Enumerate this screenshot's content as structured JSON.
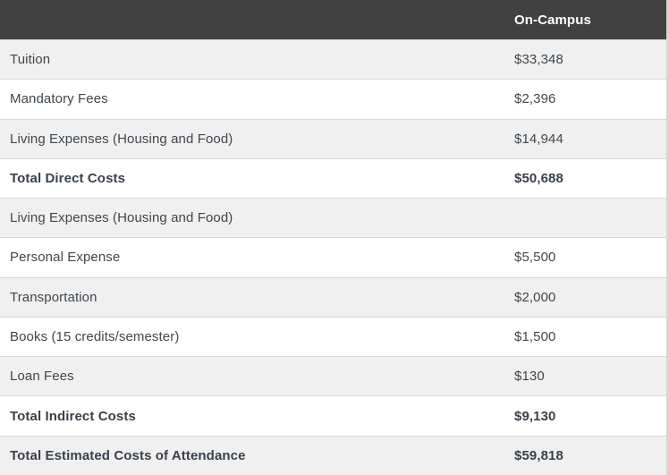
{
  "table": {
    "header": {
      "label_column": "",
      "value_column": "On-Campus"
    },
    "rows": [
      {
        "label": "Tuition",
        "value": "$33,348",
        "bold": false
      },
      {
        "label": "Mandatory Fees",
        "value": "$2,396",
        "bold": false
      },
      {
        "label": "Living Expenses (Housing and Food)",
        "value": "$14,944",
        "bold": false
      },
      {
        "label": "Total Direct Costs",
        "value": "$50,688",
        "bold": true
      },
      {
        "label": "Living Expenses (Housing and Food)",
        "value": "",
        "bold": false
      },
      {
        "label": "Personal Expense",
        "value": "$5,500",
        "bold": false
      },
      {
        "label": "Transportation",
        "value": "$2,000",
        "bold": false
      },
      {
        "label": "Books (15 credits/semester)",
        "value": "$1,500",
        "bold": false
      },
      {
        "label": "Loan Fees",
        "value": "$130",
        "bold": false
      },
      {
        "label": "Total Indirect Costs",
        "value": "$9,130",
        "bold": true
      },
      {
        "label": "Total Estimated Costs of Attendance",
        "value": "$59,818",
        "bold": true
      }
    ]
  },
  "colors": {
    "header_bg": "#414141",
    "header_text": "#ffffff",
    "row_alt_bg": "#f0f0f0",
    "row_bg": "#ffffff",
    "border": "#d9d9d9",
    "text": "#3f474e"
  }
}
